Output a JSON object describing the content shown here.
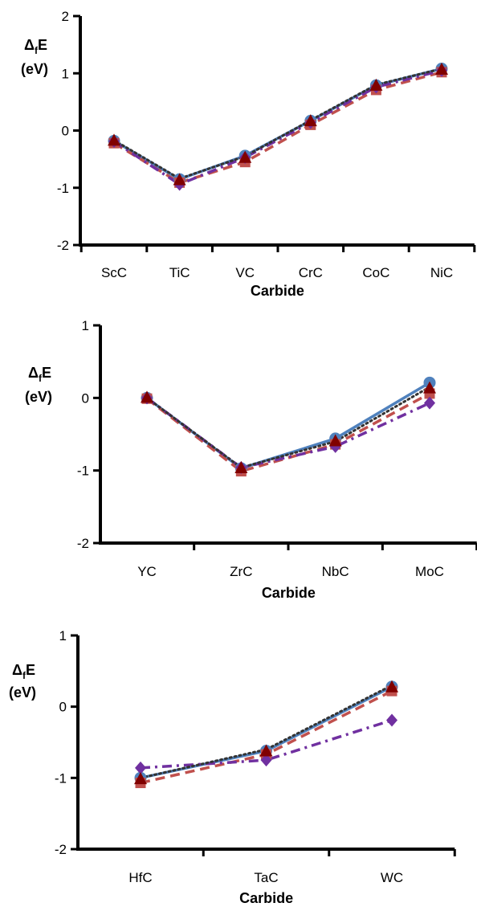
{
  "colors": {
    "series_1": "#4F81BD",
    "series_2": "#C0504D",
    "series_3": "#7030A0",
    "series_4": "#800000",
    "series_5": "#333333"
  },
  "chart_data": [
    {
      "type": "line",
      "xlabel": "Carbide",
      "ylabel": "ΔfE (eV)",
      "ylim": [
        -2,
        2
      ],
      "yticks": [
        -2,
        -1,
        0,
        1,
        2
      ],
      "categories": [
        "ScC",
        "TiC",
        "VC",
        "CrC",
        "CoC",
        "NiC"
      ],
      "series": [
        {
          "marker": "circle",
          "color": "#4F81BD",
          "line": "solid",
          "values": [
            -0.18,
            -0.85,
            -0.44,
            0.17,
            0.79,
            1.08
          ]
        },
        {
          "marker": "square",
          "color": "#C0504D",
          "line": "dash",
          "values": [
            -0.22,
            -0.91,
            -0.55,
            0.1,
            0.71,
            1.02
          ]
        },
        {
          "marker": "diamond",
          "color": "#7030A0",
          "line": "dash-dot",
          "values": [
            -0.19,
            -0.94,
            -0.47,
            0.14,
            0.76,
            1.05
          ]
        },
        {
          "marker": "triangle",
          "color": "#800000",
          "line": "none",
          "values": [
            -0.18,
            -0.87,
            -0.48,
            0.16,
            0.78,
            1.06
          ]
        },
        {
          "marker": "none",
          "color": "#333333",
          "line": "dot",
          "values": [
            -0.17,
            -0.84,
            -0.45,
            0.18,
            0.8,
            1.08
          ]
        }
      ]
    },
    {
      "type": "line",
      "xlabel": "Carbide",
      "ylabel": "ΔfE (eV)",
      "ylim": [
        -2,
        1
      ],
      "yticks": [
        -2,
        -1,
        0,
        1
      ],
      "categories": [
        "YC",
        "ZrC",
        "NbC",
        "MoC"
      ],
      "series": [
        {
          "marker": "circle",
          "color": "#4F81BD",
          "line": "solid",
          "values": [
            0.0,
            -0.97,
            -0.56,
            0.21
          ]
        },
        {
          "marker": "square",
          "color": "#C0504D",
          "line": "dash",
          "values": [
            -0.01,
            -1.01,
            -0.64,
            0.06
          ]
        },
        {
          "marker": "diamond",
          "color": "#7030A0",
          "line": "dash-dot",
          "values": [
            0.0,
            -0.96,
            -0.67,
            -0.07
          ]
        },
        {
          "marker": "triangle",
          "color": "#800000",
          "line": "none",
          "values": [
            0.0,
            -0.97,
            -0.6,
            0.13
          ]
        },
        {
          "marker": "none",
          "color": "#333333",
          "line": "dot",
          "values": [
            0.0,
            -0.96,
            -0.6,
            0.15
          ]
        }
      ]
    },
    {
      "type": "line",
      "xlabel": "Carbide",
      "ylabel": "ΔfE (eV)",
      "ylim": [
        -2,
        1
      ],
      "yticks": [
        -2,
        -1,
        0,
        1
      ],
      "categories": [
        "HfC",
        "TaC",
        "WC"
      ],
      "series": [
        {
          "marker": "circle",
          "color": "#4F81BD",
          "line": "solid",
          "values": [
            -1.0,
            -0.62,
            0.28
          ]
        },
        {
          "marker": "square",
          "color": "#C0504D",
          "line": "dash",
          "values": [
            -1.07,
            -0.67,
            0.22
          ]
        },
        {
          "marker": "diamond",
          "color": "#7030A0",
          "line": "dash-dot",
          "values": [
            -0.86,
            -0.75,
            -0.19
          ]
        },
        {
          "marker": "triangle",
          "color": "#800000",
          "line": "none",
          "values": [
            -1.02,
            -0.63,
            0.27
          ]
        },
        {
          "marker": "none",
          "color": "#333333",
          "line": "dot",
          "values": [
            -1.0,
            -0.6,
            0.3
          ]
        }
      ]
    }
  ]
}
